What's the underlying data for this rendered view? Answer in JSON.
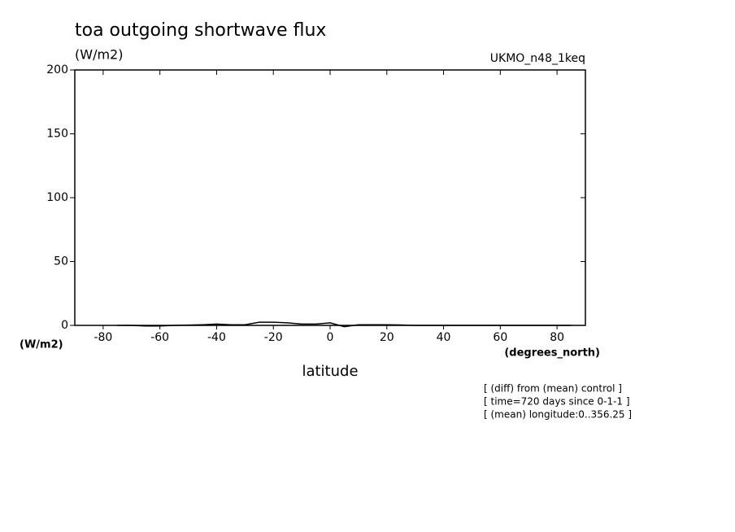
{
  "chart_data": {
    "type": "line",
    "title": "toa outgoing shortwave flux",
    "subtitle": "(W/m2)",
    "source_label": "UKMO_n48_1keq",
    "y_unit_label": "(W/m2)",
    "x_unit_label": "(degrees_north)",
    "xlabel": "latitude",
    "annotations": [
      "[ (diff) from (mean) control ]",
      "[ time=720 days since 0-1-1 ]",
      "[ (mean) longitude:0..356.25 ]"
    ],
    "x": [
      -75,
      -70,
      -65,
      -60,
      -55,
      -50,
      -45,
      -40,
      -35,
      -30,
      -25,
      -20,
      -15,
      -10,
      -5,
      0,
      5,
      10,
      15,
      20,
      25,
      30,
      35,
      40,
      45,
      50,
      55,
      60,
      65,
      70,
      75,
      80,
      85
    ],
    "series": [
      {
        "color": "#000000",
        "values": [
          0,
          0,
          -0.5,
          -0.5,
          0,
          0.2,
          0.5,
          1,
          0.5,
          0.5,
          2.5,
          2.5,
          2,
          1,
          1,
          2,
          -1,
          0.5,
          0.5,
          0.5,
          0.3,
          0,
          0,
          0,
          0,
          0,
          0,
          0,
          0,
          0,
          0,
          0,
          0
        ]
      }
    ],
    "xlim": [
      -90,
      90
    ],
    "xticks": [
      -80,
      -60,
      -40,
      -20,
      0,
      20,
      40,
      60,
      80
    ],
    "ylim": [
      0,
      200
    ],
    "yticks": [
      0,
      50,
      100,
      150,
      200
    ]
  }
}
